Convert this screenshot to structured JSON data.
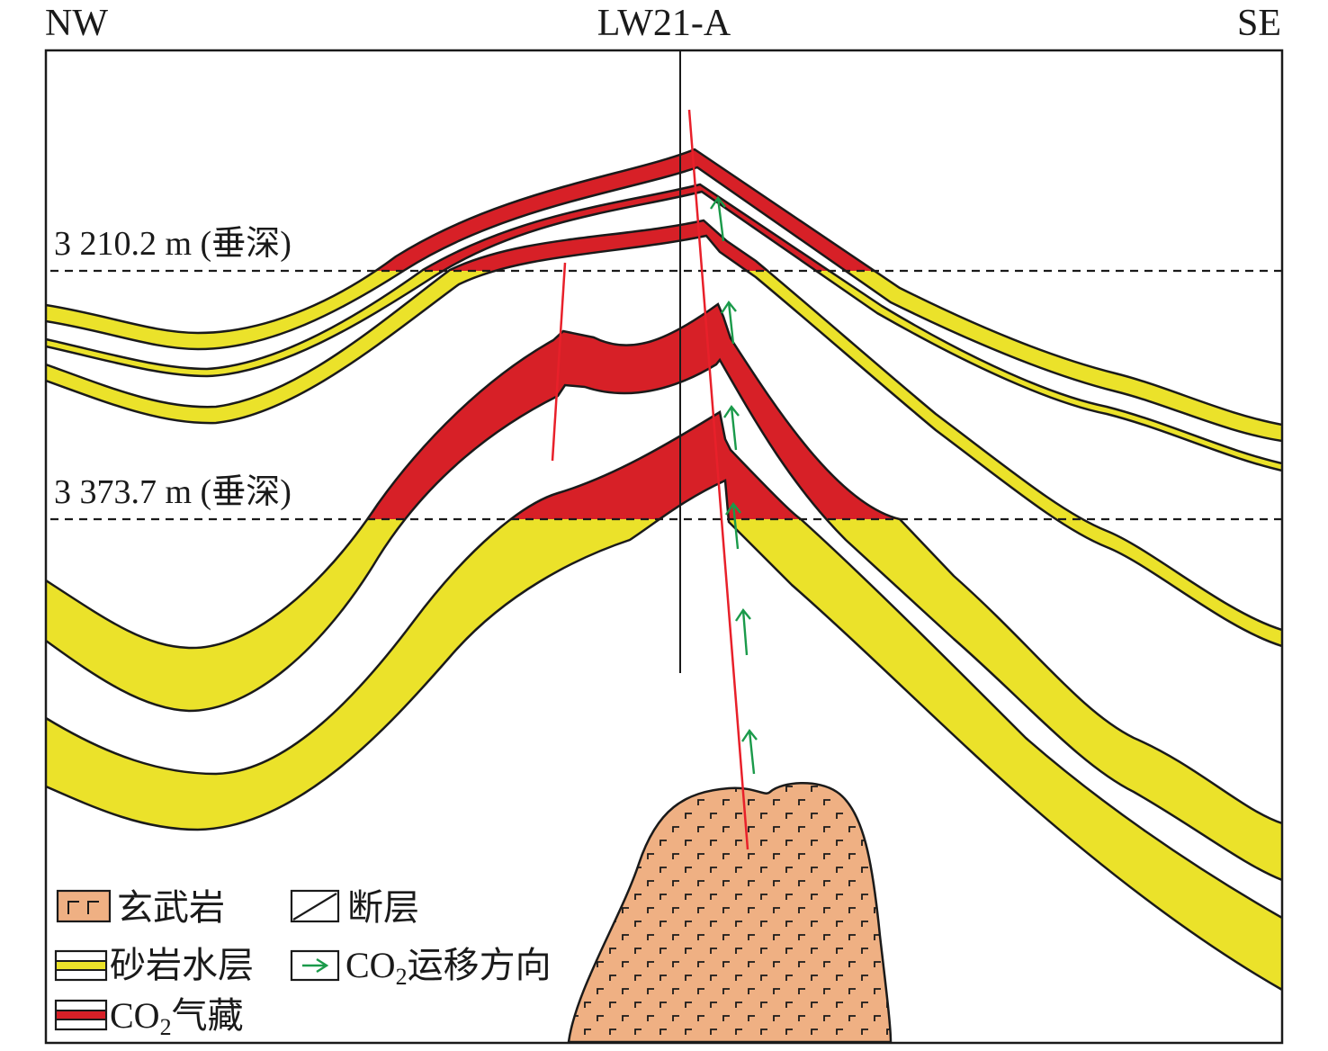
{
  "header": {
    "left": "NW",
    "center": "LW21-A",
    "right": "SE"
  },
  "depth_lines": [
    {
      "label": "3 210.2 m (垂深)"
    },
    {
      "label": "3 373.7 m (垂深)"
    }
  ],
  "legend": {
    "basalt": "玄武岩",
    "fault": "断层",
    "sandstone_aquifer": "砂岩水层",
    "co2_migration": {
      "prefix": "CO",
      "sub": "2",
      "suffix": "运移方向"
    },
    "co2_reservoir": {
      "prefix": "CO",
      "sub": "2",
      "suffix": "气藏"
    }
  },
  "colors": {
    "sandstone": "#ebe22a",
    "co2_gas": "#d72027",
    "basalt": "#efb083",
    "fault": "#e8202a",
    "migration_arrow": "#1a9a4a",
    "outline": "#1a1a1a"
  }
}
